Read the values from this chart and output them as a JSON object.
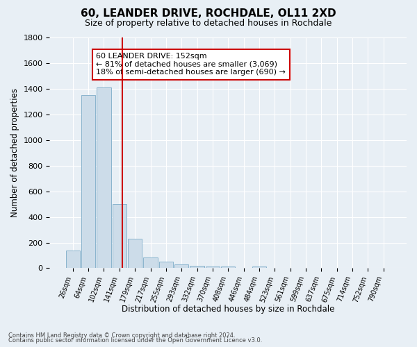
{
  "title": "60, LEANDER DRIVE, ROCHDALE, OL11 2XD",
  "subtitle": "Size of property relative to detached houses in Rochdale",
  "xlabel": "Distribution of detached houses by size in Rochdale",
  "ylabel": "Number of detached properties",
  "bar_labels": [
    "26sqm",
    "64sqm",
    "102sqm",
    "141sqm",
    "179sqm",
    "217sqm",
    "255sqm",
    "293sqm",
    "332sqm",
    "370sqm",
    "408sqm",
    "446sqm",
    "484sqm",
    "523sqm",
    "561sqm",
    "599sqm",
    "637sqm",
    "675sqm",
    "714sqm",
    "752sqm",
    "790sqm"
  ],
  "bar_values": [
    140,
    1350,
    1410,
    500,
    230,
    85,
    50,
    30,
    20,
    15,
    15,
    0,
    15,
    0,
    0,
    0,
    0,
    0,
    0,
    0,
    0
  ],
  "bar_color": "#ccdce9",
  "bar_edgecolor": "#8ab4ce",
  "vline_x": 3.18,
  "vline_color": "#cc0000",
  "ylim": [
    0,
    1800
  ],
  "yticks": [
    0,
    200,
    400,
    600,
    800,
    1000,
    1200,
    1400,
    1600,
    1800
  ],
  "annotation_text": "60 LEANDER DRIVE: 152sqm\n← 81% of detached houses are smaller (3,069)\n18% of semi-detached houses are larger (690) →",
  "footnote1": "Contains HM Land Registry data © Crown copyright and database right 2024.",
  "footnote2": "Contains public sector information licensed under the Open Government Licence v3.0.",
  "background_color": "#e8eff5",
  "plot_bg_color": "#e8eff5",
  "grid_color": "#ffffff",
  "title_fontsize": 11,
  "subtitle_fontsize": 9,
  "annotation_box_color": "#ffffff",
  "annotation_border_color": "#cc0000"
}
